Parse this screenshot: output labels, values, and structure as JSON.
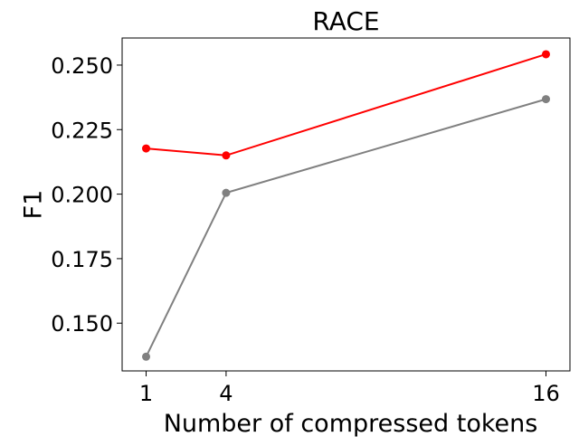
{
  "chart_data": {
    "type": "line",
    "title": "RACE",
    "xlabel": "Number of compressed tokens",
    "ylabel": "F1",
    "x": [
      1,
      4,
      16
    ],
    "x_ticks": [
      1,
      4,
      16
    ],
    "x_tick_labels": [
      "1",
      "4",
      "16"
    ],
    "xlim": [
      0.1,
      16.9
    ],
    "y_ticks": [
      0.15,
      0.175,
      0.2,
      0.225,
      0.25
    ],
    "y_tick_labels": [
      "0.150",
      "0.175",
      "0.200",
      "0.225",
      "0.250"
    ],
    "ylim": [
      0.1315,
      0.2605
    ],
    "grid": false,
    "legend": "none",
    "series": [
      {
        "color": "#ff0000",
        "values": [
          0.2177,
          0.215,
          0.2542
        ]
      },
      {
        "color": "#808080",
        "values": [
          0.137,
          0.2005,
          0.2368
        ]
      }
    ]
  }
}
